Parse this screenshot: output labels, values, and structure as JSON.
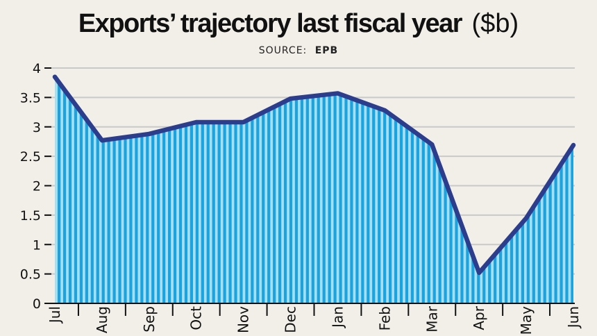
{
  "chart_data": {
    "type": "area",
    "title": "Exports’ trajectory last fiscal year",
    "title_unit": "($b)",
    "source_label": "SOURCE:",
    "source_value": "EPB",
    "categories": [
      "Jul",
      "Aug",
      "Sep",
      "Oct",
      "Nov",
      "Dec",
      "Jan",
      "Feb",
      "Mar",
      "Apr",
      "May",
      "Jun"
    ],
    "series": [
      {
        "name": "Exports",
        "values": [
          3.85,
          2.77,
          2.88,
          3.08,
          3.08,
          3.48,
          3.57,
          3.28,
          2.7,
          0.52,
          1.45,
          2.69
        ]
      }
    ],
    "ylim": [
      0,
      4
    ],
    "yticks": [
      "0",
      "0.5",
      "1",
      "1.5",
      "2",
      "2.5",
      "3",
      "3.5",
      "4"
    ],
    "xlabel": "",
    "ylabel": "",
    "grid": true,
    "colors": {
      "line": "#2b3d8c",
      "fill_light": "#a6dff2",
      "fill_dark": "#1aa3df",
      "grid": "#c9c9c9",
      "axis": "#111111"
    }
  }
}
